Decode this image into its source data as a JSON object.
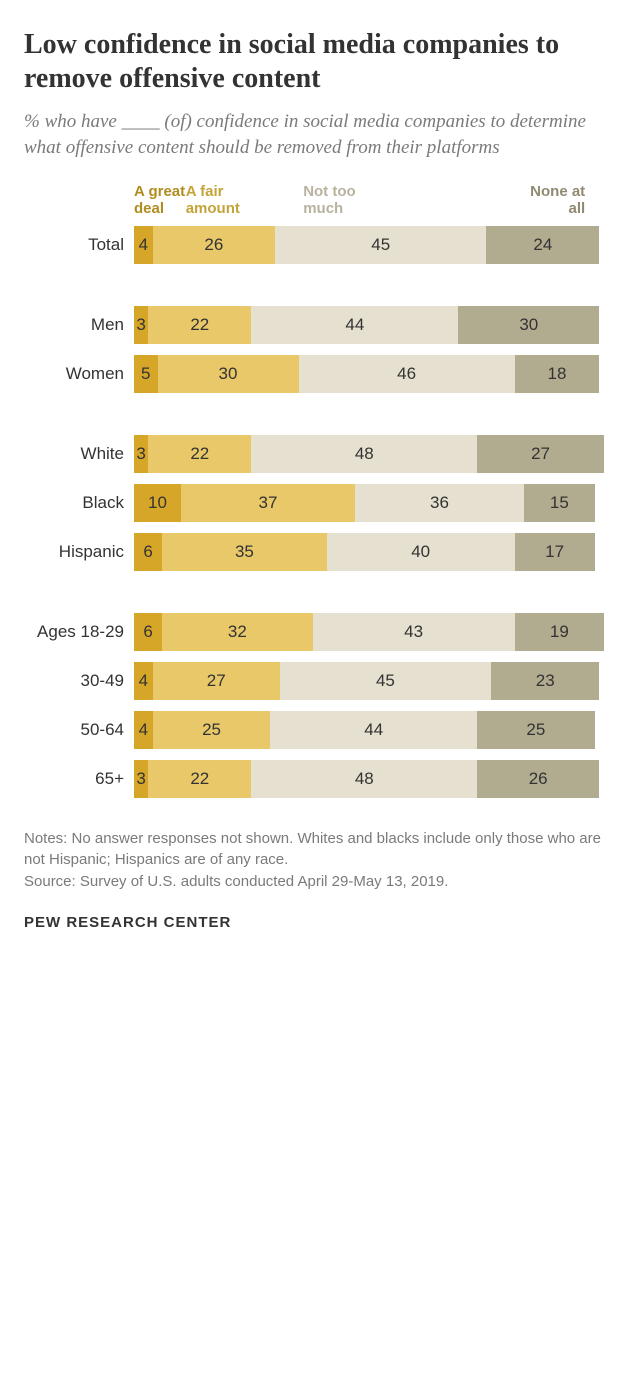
{
  "title": "Low confidence in social media companies to remove offensive content",
  "subtitle": "% who have ____ (of) confidence in social media companies to determine what offensive content should be removed from their platforms",
  "chart": {
    "type": "stacked-bar",
    "bar_max_pct": 100,
    "categories": [
      {
        "key": "great_deal",
        "label": "A great deal",
        "color": "#d6a629",
        "text_color": "#b18c1f"
      },
      {
        "key": "fair_amount",
        "label": "A fair amount",
        "color": "#e8c868",
        "text_color": "#c4a43a"
      },
      {
        "key": "not_too_much",
        "label": "Not too much",
        "color": "#e6e0d0",
        "text_color": "#b8b29f"
      },
      {
        "key": "none_at_all",
        "label": "None at all",
        "color": "#b1ab8f",
        "text_color": "#8f8a71"
      }
    ],
    "legend_widths_pct": [
      11,
      25,
      36,
      24
    ],
    "groups": [
      {
        "rows": [
          {
            "label": "Total",
            "values": [
              4,
              26,
              45,
              24
            ]
          }
        ]
      },
      {
        "rows": [
          {
            "label": "Men",
            "values": [
              3,
              22,
              44,
              30
            ]
          },
          {
            "label": "Women",
            "values": [
              5,
              30,
              46,
              18
            ]
          }
        ]
      },
      {
        "rows": [
          {
            "label": "White",
            "values": [
              3,
              22,
              48,
              27
            ]
          },
          {
            "label": "Black",
            "values": [
              10,
              37,
              36,
              15
            ]
          },
          {
            "label": "Hispanic",
            "values": [
              6,
              35,
              40,
              17
            ]
          }
        ]
      },
      {
        "rows": [
          {
            "label": "Ages 18-29",
            "values": [
              6,
              32,
              43,
              19
            ]
          },
          {
            "label": "30-49",
            "values": [
              4,
              27,
              45,
              23
            ]
          },
          {
            "label": "50-64",
            "values": [
              4,
              25,
              44,
              25
            ]
          },
          {
            "label": "65+",
            "values": [
              3,
              22,
              48,
              26
            ]
          }
        ]
      }
    ],
    "fonts": {
      "title_size_pt": 21,
      "subtitle_size_pt": 14,
      "label_size_pt": 13,
      "value_size_pt": 13
    },
    "background_color": "#ffffff"
  },
  "notes": "Notes: No answer responses not shown. Whites and blacks include only those who are not Hispanic; Hispanics are of any race.",
  "source": "Source: Survey of U.S. adults conducted April 29-May 13, 2019.",
  "brand": "PEW RESEARCH CENTER"
}
